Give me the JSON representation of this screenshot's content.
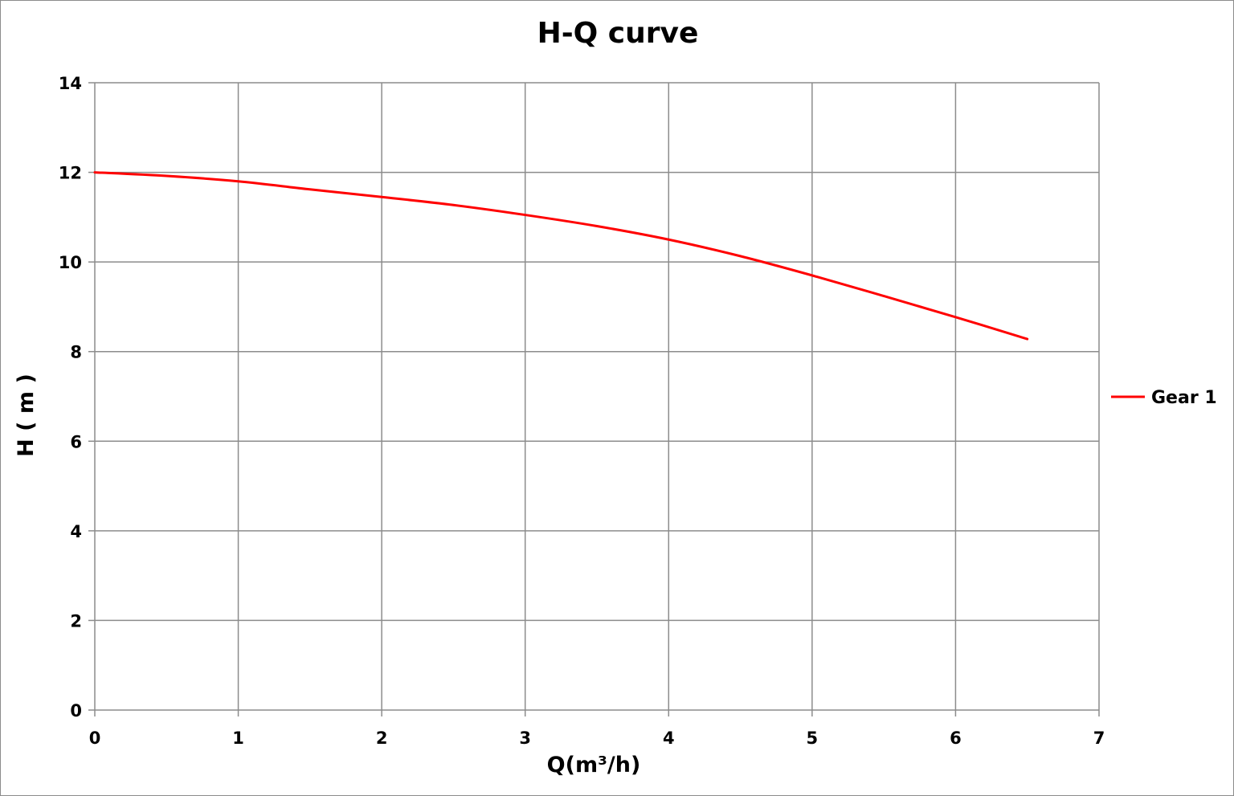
{
  "chart_data": {
    "type": "line",
    "title": "H-Q  curve",
    "xlabel": "Q(m³/h)",
    "ylabel": "H ( m )",
    "xlim": [
      0,
      7
    ],
    "ylim": [
      0,
      14
    ],
    "x_ticks": [
      0,
      1,
      2,
      3,
      4,
      5,
      6,
      7
    ],
    "y_ticks": [
      0,
      2,
      4,
      6,
      8,
      10,
      12,
      14
    ],
    "grid": true,
    "legend_position": "right",
    "series": [
      {
        "name": "Gear 1",
        "color": "#ff0000",
        "x": [
          0,
          0.5,
          1,
          1.5,
          2,
          2.5,
          3,
          3.5,
          4,
          4.5,
          5,
          5.5,
          6,
          6.5
        ],
        "y": [
          12.0,
          11.92,
          11.8,
          11.62,
          11.45,
          11.27,
          11.05,
          10.8,
          10.5,
          10.13,
          9.7,
          9.24,
          8.77,
          8.28
        ]
      }
    ]
  }
}
